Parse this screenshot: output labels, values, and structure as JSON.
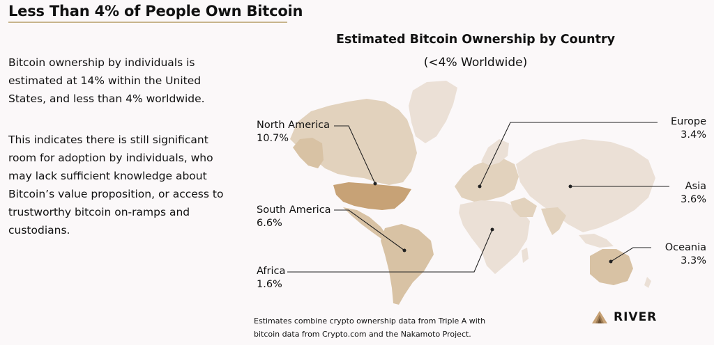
{
  "header": {
    "title": "Less Than 4% of People Own Bitcoin"
  },
  "text": {
    "intro": "Bitcoin ownership by individuals is estimated at 14% within the United States, and less than 4% worldwide.",
    "detail": "This indicates there is still significant room for adoption by individuals, who may lack sufficient knowledge about Bitcoin’s value proposition, or access to trustworthy bitcoin on-ramps and custodians."
  },
  "chart_data": {
    "type": "map",
    "title": "Estimated Bitcoin Ownership by Country",
    "subtitle": "(<4% Worldwide)",
    "regions": [
      {
        "name": "North America",
        "value": 10.7,
        "label": "10.7%"
      },
      {
        "name": "South America",
        "value": 6.6,
        "label": "6.6%"
      },
      {
        "name": "Africa",
        "value": 1.6,
        "label": "1.6%"
      },
      {
        "name": "Europe",
        "value": 3.4,
        "label": "3.4%"
      },
      {
        "name": "Asia",
        "value": 3.6,
        "label": "3.6%"
      },
      {
        "name": "Oceania",
        "value": 3.3,
        "label": "3.3%"
      }
    ],
    "colors": {
      "light": "#ebe0d6",
      "mid": "#e2d2bd",
      "tan": "#d8c2a4",
      "dark": "#c7a276",
      "leader": "#222222",
      "accent": "#c7b48c"
    }
  },
  "footnote": {
    "line1": "Estimates combine crypto ownership data from Triple A with",
    "line2": "bitcoin data from Crypto.com and the Nakamoto Project."
  },
  "brand": {
    "name": "RIVER",
    "logo_icon": "river-mountain-logo"
  }
}
